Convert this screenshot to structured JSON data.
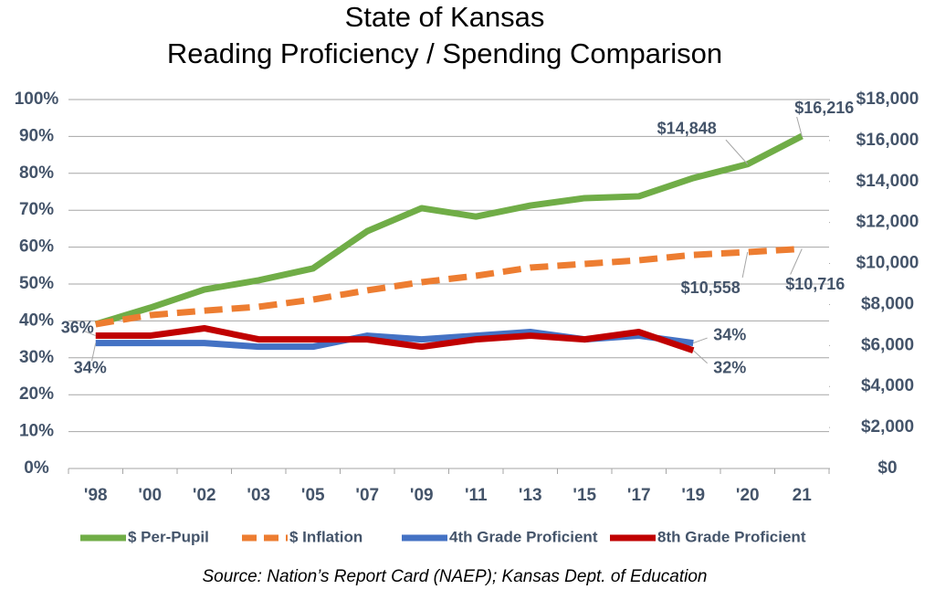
{
  "chart_data": {
    "type": "line",
    "title": "State of Kansas",
    "subtitle": "Reading Proficiency / Spending Comparison",
    "source": "Source: Nation’s Report Card (NAEP); Kansas Dept. of Education",
    "categories": [
      "'98",
      "'00",
      "'02",
      "'03",
      "'05",
      "'07",
      "'09",
      "'11",
      "'13",
      "'15",
      "'17",
      "'19",
      "'20",
      "21"
    ],
    "ylim": [
      0,
      100
    ],
    "yticks": [
      {
        "value": 0,
        "label": "0%"
      },
      {
        "value": 10,
        "label": "10%"
      },
      {
        "value": 20,
        "label": "20%"
      },
      {
        "value": 30,
        "label": "30%"
      },
      {
        "value": 40,
        "label": "40%"
      },
      {
        "value": 50,
        "label": "50%"
      },
      {
        "value": 60,
        "label": "60%"
      },
      {
        "value": 70,
        "label": "70%"
      },
      {
        "value": 80,
        "label": "80%"
      },
      {
        "value": 90,
        "label": "90%"
      },
      {
        "value": 100,
        "label": "100%"
      }
    ],
    "y2lim": [
      0,
      18000
    ],
    "y2ticks": [
      {
        "value": 0,
        "label": "$0"
      },
      {
        "value": 2000,
        "label": "$2,000"
      },
      {
        "value": 4000,
        "label": "$4,000"
      },
      {
        "value": 6000,
        "label": "$6,000"
      },
      {
        "value": 8000,
        "label": "$8,000"
      },
      {
        "value": 10000,
        "label": "$10,000"
      },
      {
        "value": 12000,
        "label": "$12,000"
      },
      {
        "value": 14000,
        "label": "$14,000"
      },
      {
        "value": 16000,
        "label": "$16,000"
      },
      {
        "value": 18000,
        "label": "$18,000"
      }
    ],
    "grid": true,
    "legend": "bottom",
    "series": [
      {
        "name": "$ Per-Pupil",
        "color": "#70ad47",
        "axis": "y2",
        "dashed": false,
        "values": [
          7040,
          7840,
          8730,
          9180,
          9760,
          11580,
          12700,
          12290,
          12830,
          13190,
          13280,
          14170,
          14848,
          16216
        ],
        "value_labels": [
          null,
          null,
          null,
          null,
          null,
          null,
          null,
          null,
          null,
          null,
          null,
          null,
          "$14,848",
          "$16,216"
        ]
      },
      {
        "name": "$ Inflation",
        "color": "#ed7d31",
        "axis": "y2",
        "dashed": true,
        "values": [
          7040,
          7480,
          7700,
          7890,
          8240,
          8690,
          9090,
          9400,
          9800,
          9980,
          10160,
          10420,
          10558,
          10716
        ],
        "value_labels": [
          null,
          null,
          null,
          null,
          null,
          null,
          null,
          null,
          null,
          null,
          null,
          null,
          "$10,558",
          "$10,716"
        ]
      },
      {
        "name": "4th Grade Proficient",
        "color": "#4472c4",
        "axis": "y",
        "dashed": false,
        "values": [
          34,
          34,
          34,
          33,
          33,
          36,
          35,
          36,
          37,
          35,
          36,
          34,
          null,
          null
        ],
        "value_labels": [
          "34%",
          null,
          null,
          null,
          null,
          null,
          null,
          null,
          null,
          null,
          null,
          "34%",
          null,
          null
        ]
      },
      {
        "name": "8th Grade Proficient",
        "color": "#c00000",
        "axis": "y",
        "dashed": false,
        "values": [
          36,
          36,
          38,
          35,
          35,
          35,
          33,
          35,
          36,
          35,
          37,
          32,
          null,
          null
        ],
        "value_labels": [
          "36%",
          null,
          null,
          null,
          null,
          null,
          null,
          null,
          null,
          null,
          null,
          "32%",
          null,
          null
        ]
      }
    ]
  }
}
